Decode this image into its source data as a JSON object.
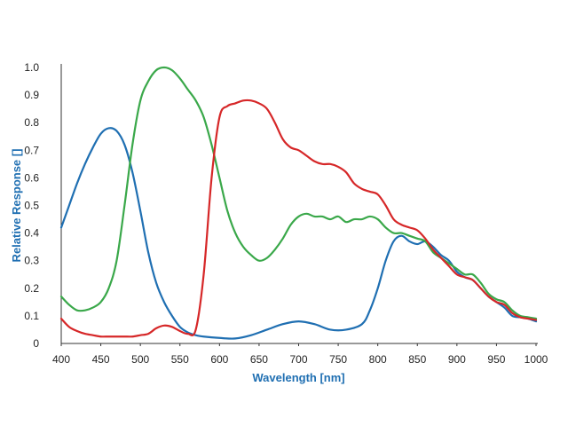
{
  "chart_data": {
    "type": "line",
    "xlabel": "Wavelength [nm]",
    "ylabel": "Relative Response []",
    "xlim": [
      400,
      1000
    ],
    "ylim": [
      0,
      1.0
    ],
    "x_ticks": [
      "400",
      "450",
      "500",
      "550",
      "600",
      "650",
      "700",
      "750",
      "800",
      "850",
      "900",
      "950",
      "1000"
    ],
    "y_ticks": [
      "0",
      "0.1",
      "0.2",
      "0.3",
      "0.4",
      "0.5",
      "0.6",
      "0.7",
      "0.8",
      "0.9",
      "1.0"
    ],
    "grid": false,
    "series": [
      {
        "color": "#1f6fb2",
        "points": [
          [
            400,
            0.42
          ],
          [
            410,
            0.5
          ],
          [
            420,
            0.58
          ],
          [
            430,
            0.65
          ],
          [
            440,
            0.71
          ],
          [
            450,
            0.76
          ],
          [
            460,
            0.78
          ],
          [
            470,
            0.77
          ],
          [
            480,
            0.72
          ],
          [
            490,
            0.62
          ],
          [
            500,
            0.48
          ],
          [
            510,
            0.33
          ],
          [
            520,
            0.22
          ],
          [
            530,
            0.15
          ],
          [
            540,
            0.1
          ],
          [
            550,
            0.06
          ],
          [
            560,
            0.04
          ],
          [
            570,
            0.03
          ],
          [
            580,
            0.025
          ],
          [
            600,
            0.02
          ],
          [
            620,
            0.018
          ],
          [
            640,
            0.03
          ],
          [
            660,
            0.05
          ],
          [
            680,
            0.07
          ],
          [
            700,
            0.08
          ],
          [
            720,
            0.07
          ],
          [
            740,
            0.05
          ],
          [
            760,
            0.05
          ],
          [
            780,
            0.07
          ],
          [
            790,
            0.12
          ],
          [
            800,
            0.2
          ],
          [
            810,
            0.3
          ],
          [
            820,
            0.37
          ],
          [
            830,
            0.39
          ],
          [
            840,
            0.37
          ],
          [
            850,
            0.36
          ],
          [
            860,
            0.37
          ],
          [
            870,
            0.35
          ],
          [
            880,
            0.32
          ],
          [
            890,
            0.3
          ],
          [
            900,
            0.26
          ],
          [
            910,
            0.24
          ],
          [
            920,
            0.23
          ],
          [
            930,
            0.2
          ],
          [
            940,
            0.17
          ],
          [
            950,
            0.15
          ],
          [
            960,
            0.13
          ],
          [
            970,
            0.1
          ],
          [
            980,
            0.095
          ],
          [
            990,
            0.09
          ],
          [
            1000,
            0.08
          ]
        ]
      },
      {
        "color": "#3aa84a",
        "points": [
          [
            400,
            0.17
          ],
          [
            410,
            0.14
          ],
          [
            420,
            0.12
          ],
          [
            430,
            0.12
          ],
          [
            440,
            0.13
          ],
          [
            450,
            0.15
          ],
          [
            460,
            0.2
          ],
          [
            470,
            0.3
          ],
          [
            480,
            0.5
          ],
          [
            490,
            0.72
          ],
          [
            500,
            0.88
          ],
          [
            510,
            0.95
          ],
          [
            520,
            0.99
          ],
          [
            530,
            1.0
          ],
          [
            540,
            0.99
          ],
          [
            550,
            0.96
          ],
          [
            560,
            0.92
          ],
          [
            570,
            0.88
          ],
          [
            580,
            0.82
          ],
          [
            590,
            0.72
          ],
          [
            600,
            0.6
          ],
          [
            610,
            0.48
          ],
          [
            620,
            0.4
          ],
          [
            630,
            0.35
          ],
          [
            640,
            0.32
          ],
          [
            650,
            0.3
          ],
          [
            660,
            0.31
          ],
          [
            670,
            0.34
          ],
          [
            680,
            0.38
          ],
          [
            690,
            0.43
          ],
          [
            700,
            0.46
          ],
          [
            710,
            0.47
          ],
          [
            720,
            0.46
          ],
          [
            730,
            0.46
          ],
          [
            740,
            0.45
          ],
          [
            750,
            0.46
          ],
          [
            760,
            0.44
          ],
          [
            770,
            0.45
          ],
          [
            780,
            0.45
          ],
          [
            790,
            0.46
          ],
          [
            800,
            0.45
          ],
          [
            810,
            0.42
          ],
          [
            820,
            0.4
          ],
          [
            830,
            0.4
          ],
          [
            840,
            0.39
          ],
          [
            850,
            0.38
          ],
          [
            860,
            0.37
          ],
          [
            870,
            0.33
          ],
          [
            880,
            0.31
          ],
          [
            890,
            0.29
          ],
          [
            900,
            0.27
          ],
          [
            910,
            0.25
          ],
          [
            920,
            0.25
          ],
          [
            930,
            0.22
          ],
          [
            940,
            0.18
          ],
          [
            950,
            0.16
          ],
          [
            960,
            0.15
          ],
          [
            970,
            0.12
          ],
          [
            980,
            0.1
          ],
          [
            990,
            0.095
          ],
          [
            1000,
            0.09
          ]
        ]
      },
      {
        "color": "#d62728",
        "points": [
          [
            400,
            0.09
          ],
          [
            410,
            0.06
          ],
          [
            420,
            0.045
          ],
          [
            430,
            0.035
          ],
          [
            440,
            0.03
          ],
          [
            450,
            0.025
          ],
          [
            460,
            0.025
          ],
          [
            470,
            0.025
          ],
          [
            480,
            0.025
          ],
          [
            490,
            0.025
          ],
          [
            500,
            0.03
          ],
          [
            510,
            0.035
          ],
          [
            520,
            0.055
          ],
          [
            530,
            0.065
          ],
          [
            540,
            0.06
          ],
          [
            550,
            0.045
          ],
          [
            560,
            0.035
          ],
          [
            570,
            0.05
          ],
          [
            580,
            0.25
          ],
          [
            590,
            0.6
          ],
          [
            600,
            0.82
          ],
          [
            610,
            0.86
          ],
          [
            620,
            0.87
          ],
          [
            630,
            0.88
          ],
          [
            640,
            0.88
          ],
          [
            650,
            0.87
          ],
          [
            660,
            0.85
          ],
          [
            670,
            0.8
          ],
          [
            680,
            0.74
          ],
          [
            690,
            0.71
          ],
          [
            700,
            0.7
          ],
          [
            710,
            0.68
          ],
          [
            720,
            0.66
          ],
          [
            730,
            0.65
          ],
          [
            740,
            0.65
          ],
          [
            750,
            0.64
          ],
          [
            760,
            0.62
          ],
          [
            770,
            0.58
          ],
          [
            780,
            0.56
          ],
          [
            790,
            0.55
          ],
          [
            800,
            0.54
          ],
          [
            810,
            0.5
          ],
          [
            820,
            0.45
          ],
          [
            830,
            0.43
          ],
          [
            840,
            0.42
          ],
          [
            850,
            0.41
          ],
          [
            860,
            0.38
          ],
          [
            870,
            0.34
          ],
          [
            880,
            0.31
          ],
          [
            890,
            0.28
          ],
          [
            900,
            0.25
          ],
          [
            910,
            0.24
          ],
          [
            920,
            0.23
          ],
          [
            930,
            0.2
          ],
          [
            940,
            0.17
          ],
          [
            950,
            0.15
          ],
          [
            960,
            0.14
          ],
          [
            970,
            0.11
          ],
          [
            980,
            0.095
          ],
          [
            990,
            0.09
          ],
          [
            1000,
            0.085
          ]
        ]
      }
    ]
  }
}
